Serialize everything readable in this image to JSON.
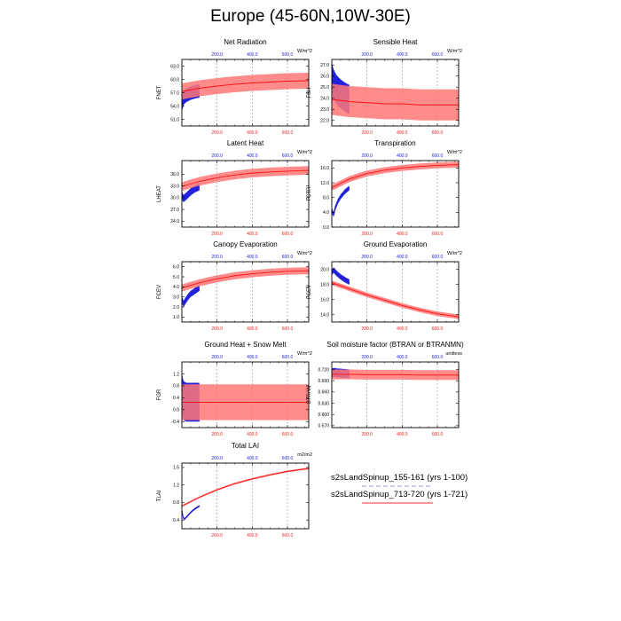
{
  "title": "Europe (45-60N,10W-30E)",
  "colors": {
    "run1": "#2222dd",
    "run2": "#ff1111",
    "run2_band": "#ff7777"
  },
  "legend": [
    {
      "label": "s2sLandSpinup_155-161 (yrs 1-100)",
      "color": "#8899dd",
      "dash": true
    },
    {
      "label": "s2sLandSpinup_713-720 (yrs 1-721)",
      "color": "#ff3333",
      "dash": false
    }
  ],
  "chart_data": [
    {
      "type": "line",
      "title": "Net Radiation",
      "ylabel": "FNET",
      "units": "W/m^2",
      "ylim": [
        49.5,
        64.5
      ],
      "yticks": [
        "51.0",
        "54.0",
        "57.0",
        "60.0",
        "63.0"
      ],
      "ytick_vals": [
        51,
        54,
        57,
        60,
        63
      ],
      "xlim": [
        0,
        721
      ],
      "xticks_top": [
        "200.0",
        "400.0",
        "600.0"
      ],
      "xticks_bottom": [
        "200.0",
        "400.0",
        "600.0"
      ],
      "series": [
        {
          "run": "155-161",
          "years": [
            1,
            10,
            25,
            50,
            75,
            100
          ],
          "values": [
            54.5,
            55.8,
            56.4,
            56.9,
            57.2,
            57.4
          ],
          "amplitude": 1.5
        },
        {
          "run": "713-720",
          "years": [
            1,
            100,
            200,
            300,
            400,
            500,
            600,
            721
          ],
          "values": [
            57.3,
            58.0,
            58.5,
            58.9,
            59.2,
            59.4,
            59.6,
            59.7
          ],
          "amplitude": 1.8
        }
      ]
    },
    {
      "type": "line",
      "title": "Sensible Heat",
      "ylabel": "FSH",
      "units": "W/m^2",
      "ylim": [
        21.5,
        27.5
      ],
      "yticks": [
        "22.0",
        "23.0",
        "24.0",
        "25.0",
        "26.0",
        "27.0"
      ],
      "ytick_vals": [
        22,
        23,
        24,
        25,
        26,
        27
      ],
      "xlim": [
        0,
        721
      ],
      "xticks_top": [
        "200.0",
        "400.0",
        "600.0"
      ],
      "xticks_bottom": [
        "200.0",
        "400.0",
        "600.0"
      ],
      "series": [
        {
          "run": "155-161",
          "years": [
            1,
            10,
            25,
            50,
            75,
            100
          ],
          "values": [
            25.8,
            25.3,
            24.8,
            24.4,
            24.1,
            23.9
          ],
          "amplitude": 1.3
        },
        {
          "run": "713-720",
          "years": [
            1,
            100,
            200,
            300,
            400,
            500,
            600,
            721
          ],
          "values": [
            23.9,
            23.7,
            23.6,
            23.5,
            23.5,
            23.4,
            23.4,
            23.4
          ],
          "amplitude": 1.4
        }
      ]
    },
    {
      "type": "line",
      "title": "Latent Heat",
      "ylabel": "LHEAT",
      "units": "W/m^2",
      "ylim": [
        22.5,
        39.5
      ],
      "yticks": [
        "24.0",
        "27.0",
        "30.0",
        "33.0",
        "36.0"
      ],
      "ytick_vals": [
        24,
        27,
        30,
        33,
        36
      ],
      "xlim": [
        0,
        721
      ],
      "xticks_top": [
        "200.0",
        "400.0",
        "600.0"
      ],
      "xticks_bottom": [
        "200.0",
        "400.0",
        "600.0"
      ],
      "series": [
        {
          "run": "155-161",
          "years": [
            1,
            10,
            25,
            50,
            75,
            100
          ],
          "values": [
            30.5,
            29.8,
            30.4,
            31.5,
            32.3,
            32.8
          ],
          "amplitude": 0.9
        },
        {
          "run": "713-720",
          "years": [
            1,
            100,
            200,
            300,
            400,
            500,
            600,
            721
          ],
          "values": [
            32.9,
            34.2,
            35.1,
            35.8,
            36.3,
            36.6,
            36.8,
            37.0
          ],
          "amplitude": 1.1
        }
      ]
    },
    {
      "type": "line",
      "title": "Transpiration",
      "ylabel": "FCTR",
      "units": "W/m^2",
      "ylim": [
        0,
        18
      ],
      "yticks": [
        "0.0",
        "4.0",
        "8.0",
        "12.0",
        "16.0"
      ],
      "ytick_vals": [
        0,
        4,
        8,
        12,
        16
      ],
      "xlim": [
        0,
        721
      ],
      "xticks_top": [
        "200.0",
        "400.0",
        "600.0"
      ],
      "xticks_bottom": [
        "200.0",
        "400.0",
        "600.0"
      ],
      "series": [
        {
          "run": "155-161",
          "years": [
            1,
            10,
            20,
            35,
            50,
            75,
            100
          ],
          "values": [
            4.5,
            3.4,
            5.2,
            7.0,
            8.2,
            9.6,
            10.6
          ],
          "amplitude": 0.6
        },
        {
          "run": "713-720",
          "years": [
            1,
            100,
            200,
            300,
            400,
            500,
            600,
            721
          ],
          "values": [
            10.7,
            13.0,
            14.5,
            15.4,
            16.0,
            16.4,
            16.7,
            16.9
          ],
          "amplitude": 0.8
        }
      ]
    },
    {
      "type": "line",
      "title": "Canopy Evaporation",
      "ylabel": "FCEV",
      "units": "W/m^2",
      "ylim": [
        0.5,
        6.5
      ],
      "yticks": [
        "1.0",
        "2.0",
        "3.0",
        "4.0",
        "5.0",
        "6.0"
      ],
      "ytick_vals": [
        1,
        2,
        3,
        4,
        5,
        6
      ],
      "xlim": [
        0,
        721
      ],
      "xticks_top": [
        "200.0",
        "400.0",
        "600.0"
      ],
      "xticks_bottom": [
        "200.0",
        "400.0",
        "600.0"
      ],
      "series": [
        {
          "run": "155-161",
          "years": [
            1,
            10,
            20,
            35,
            50,
            75,
            100
          ],
          "values": [
            2.7,
            2.3,
            2.6,
            3.0,
            3.3,
            3.6,
            3.9
          ],
          "amplitude": 0.3
        },
        {
          "run": "713-720",
          "years": [
            1,
            100,
            200,
            300,
            400,
            500,
            600,
            721
          ],
          "values": [
            3.9,
            4.4,
            4.8,
            5.1,
            5.3,
            5.45,
            5.55,
            5.6
          ],
          "amplitude": 0.35
        }
      ]
    },
    {
      "type": "line",
      "title": "Ground Evaporation",
      "ylabel": "FGEV",
      "units": "W/m^2",
      "ylim": [
        13.0,
        21.0
      ],
      "yticks": [
        "14.0",
        "16.0",
        "18.0",
        "20.0"
      ],
      "ytick_vals": [
        14,
        16,
        18,
        20
      ],
      "xlim": [
        0,
        721
      ],
      "xticks_top": [
        "200.0",
        "400.0",
        "600.0"
      ],
      "xticks_bottom": [
        "200.0",
        "400.0",
        "600.0"
      ],
      "series": [
        {
          "run": "155-161",
          "years": [
            1,
            10,
            25,
            50,
            75,
            100
          ],
          "values": [
            19.6,
            19.9,
            19.5,
            19.0,
            18.6,
            18.3
          ],
          "amplitude": 0.35
        },
        {
          "run": "713-720",
          "years": [
            1,
            100,
            200,
            300,
            400,
            500,
            600,
            721
          ],
          "values": [
            18.2,
            17.4,
            16.6,
            15.9,
            15.2,
            14.6,
            14.1,
            13.7
          ],
          "amplitude": 0.3
        }
      ]
    },
    {
      "type": "line",
      "title": "Ground Heat + Snow Melt",
      "ylabel": "FGR",
      "units": "W/m^2",
      "ylim": [
        -0.6,
        1.6
      ],
      "yticks": [
        "-0.4",
        "0.0",
        "0.4",
        "0.8",
        "1.2"
      ],
      "ytick_vals": [
        -0.4,
        0,
        0.4,
        0.8,
        1.2
      ],
      "xlim": [
        0,
        721
      ],
      "xticks_top": [
        "200.0",
        "400.0",
        "600.0"
      ],
      "xticks_bottom": [
        "200.0",
        "400.0",
        "600.0"
      ],
      "series": [
        {
          "run": "155-161",
          "years": [
            1,
            10,
            25,
            50,
            75,
            100
          ],
          "values": [
            0.5,
            0.3,
            0.25,
            0.25,
            0.25,
            0.25
          ],
          "amplitude": 0.65
        },
        {
          "run": "713-720",
          "years": [
            1,
            100,
            200,
            300,
            400,
            500,
            600,
            721
          ],
          "values": [
            0.25,
            0.25,
            0.25,
            0.25,
            0.25,
            0.25,
            0.25,
            0.25
          ],
          "amplitude": 0.6
        }
      ]
    },
    {
      "type": "line",
      "title": "Soil moisture factor (BTRAN or BTRANMN)",
      "ylabel": "BTRAN",
      "units": "unitless",
      "ylim": [
        0.565,
        0.74
      ],
      "yticks": [
        "0.570",
        "0.600",
        "0.630",
        "0.660",
        "0.690",
        "0.720"
      ],
      "ytick_vals": [
        0.57,
        0.6,
        0.63,
        0.66,
        0.69,
        0.72
      ],
      "xlim": [
        0,
        721
      ],
      "xticks_top": [
        "200.0",
        "400.0",
        "600.0"
      ],
      "xticks_bottom": [
        "200.0",
        "400.0",
        "600.0"
      ],
      "series": [
        {
          "run": "155-161",
          "years": [
            1,
            10,
            25,
            50,
            75,
            100
          ],
          "values": [
            0.71,
            0.712,
            0.711,
            0.71,
            0.709,
            0.708
          ],
          "amplitude": 0.012
        },
        {
          "run": "713-720",
          "years": [
            1,
            100,
            200,
            300,
            400,
            500,
            600,
            721
          ],
          "values": [
            0.707,
            0.707,
            0.706,
            0.706,
            0.706,
            0.705,
            0.705,
            0.705
          ],
          "amplitude": 0.013
        }
      ]
    },
    {
      "type": "line",
      "title": "Total LAI",
      "ylabel": "TLAI",
      "units": "m2/m2",
      "ylim": [
        0.2,
        1.7
      ],
      "yticks": [
        "0.4",
        "0.8",
        "1.2",
        "1.6"
      ],
      "ytick_vals": [
        0.4,
        0.8,
        1.2,
        1.6
      ],
      "xlim": [
        0,
        721
      ],
      "xticks_top": [
        "200.0",
        "400.0",
        "600.0"
      ],
      "xticks_bottom": [
        "200.0",
        "400.0",
        "600.0"
      ],
      "series": [
        {
          "run": "155-161",
          "years": [
            1,
            8,
            15,
            25,
            40,
            60,
            80,
            100
          ],
          "values": [
            0.6,
            0.45,
            0.42,
            0.46,
            0.53,
            0.61,
            0.67,
            0.72
          ],
          "amplitude": 0.02
        },
        {
          "run": "713-720",
          "years": [
            1,
            100,
            200,
            300,
            400,
            500,
            600,
            721
          ],
          "values": [
            0.72,
            0.92,
            1.09,
            1.23,
            1.34,
            1.43,
            1.51,
            1.58
          ],
          "amplitude": 0.02
        }
      ]
    }
  ]
}
